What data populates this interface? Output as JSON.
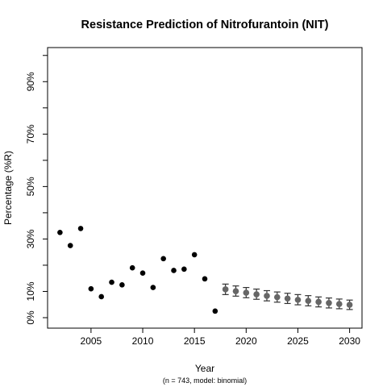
{
  "chart_data": {
    "type": "scatter",
    "title": "Resistance Prediction of Nitrofurantoin (NIT)",
    "xlabel": "Year",
    "ylabel": "Percentage (%R)",
    "caption": "(n = 743, model: binomial)",
    "xlim": [
      2000.8,
      2031.2
    ],
    "ylim": [
      -0.04,
      1.03
    ],
    "x_ticks": [
      2005,
      2010,
      2015,
      2020,
      2025,
      2030
    ],
    "y_ticks": [
      0,
      0.1,
      0.3,
      0.5,
      0.7,
      0.9
    ],
    "y_tick_labels": [
      "0%",
      "10%",
      "30%",
      "50%",
      "70%",
      "90%"
    ],
    "y_minor_ticks": [
      0.2,
      0.4,
      0.6,
      0.8,
      1.0
    ],
    "grid": false,
    "legend": "none",
    "colors": {
      "observed": "#000000",
      "predicted": "#666666",
      "error_bar": "#333333"
    },
    "series": [
      {
        "type": "observed",
        "x": [
          2002,
          2003,
          2004,
          2005,
          2006,
          2007,
          2008,
          2009,
          2010,
          2011,
          2012,
          2013,
          2014,
          2015,
          2016,
          2017
        ],
        "y": [
          0.325,
          0.275,
          0.34,
          0.11,
          0.08,
          0.135,
          0.125,
          0.19,
          0.17,
          0.115,
          0.225,
          0.18,
          0.185,
          0.24,
          0.148,
          0.025
        ]
      },
      {
        "type": "predicted",
        "x": [
          2018,
          2019,
          2020,
          2021,
          2022,
          2023,
          2024,
          2025,
          2026,
          2027,
          2028,
          2029,
          2030
        ],
        "y": [
          0.108,
          0.101,
          0.095,
          0.089,
          0.083,
          0.078,
          0.073,
          0.068,
          0.064,
          0.06,
          0.056,
          0.052,
          0.049
        ],
        "lower": [
          0.088,
          0.082,
          0.076,
          0.07,
          0.064,
          0.059,
          0.054,
          0.049,
          0.045,
          0.041,
          0.037,
          0.034,
          0.031
        ],
        "upper": [
          0.128,
          0.121,
          0.115,
          0.109,
          0.103,
          0.098,
          0.093,
          0.088,
          0.084,
          0.079,
          0.075,
          0.071,
          0.067
        ]
      }
    ]
  }
}
